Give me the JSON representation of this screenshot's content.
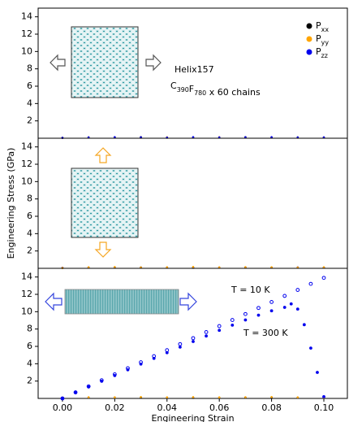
{
  "chart_data": [
    {
      "type": "scatter",
      "xlim": [
        -0.0093,
        0.109
      ],
      "ylim": [
        0,
        15
      ],
      "yticks": [
        2,
        4,
        6,
        8,
        10,
        12,
        14
      ],
      "legend": "upper right",
      "annotations": [
        "Helix157",
        "C390F780 x 60 chains"
      ],
      "series": [
        {
          "name": "Pxx",
          "color": "#000000",
          "marker": "filled",
          "x": [
            0,
            0.01,
            0.02,
            0.03,
            0.04,
            0.05,
            0.06,
            0.07,
            0.08,
            0.09,
            0.1
          ],
          "values": [
            0.05,
            0.1,
            0.08,
            0.12,
            0.06,
            0.1,
            0.09,
            0.13,
            0.07,
            0.1,
            0.08
          ]
        },
        {
          "name": "Pyy",
          "color": "#ffa500",
          "marker": "filled",
          "x": [
            0,
            0.01,
            0.02,
            0.03,
            0.04,
            0.05,
            0.06,
            0.07,
            0.08,
            0.09,
            0.1
          ],
          "values": [
            0.03,
            0.08,
            0.1,
            0.06,
            0.11,
            0.07,
            0.12,
            0.08,
            0.1,
            0.06,
            0.09
          ]
        },
        {
          "name": "Pzz",
          "color": "#0000ee",
          "marker": "filled",
          "x": [
            0,
            0.01,
            0.02,
            0.03,
            0.04,
            0.05,
            0.06,
            0.07,
            0.08,
            0.09,
            0.1
          ],
          "values": [
            0.04,
            0.09,
            0.12,
            0.1,
            0.08,
            0.13,
            0.1,
            0.11,
            0.12,
            0.09,
            0.1
          ]
        }
      ]
    },
    {
      "type": "scatter",
      "xlim": [
        -0.0093,
        0.109
      ],
      "ylim": [
        0,
        15
      ],
      "yticks": [
        2,
        4,
        6,
        8,
        10,
        12,
        14
      ],
      "ylabel": "Engineering Stress (GPa)",
      "series": [
        {
          "color": "#000000",
          "marker": "filled",
          "x": [
            0,
            0.01,
            0.02,
            0.03,
            0.04,
            0.05,
            0.06,
            0.07,
            0.08,
            0.09,
            0.1
          ],
          "values": [
            0.05,
            0.09,
            0.07,
            0.1,
            0.08,
            0.06,
            0.1,
            0.09,
            0.07,
            0.1,
            0.08
          ]
        },
        {
          "color": "#0000ee",
          "marker": "filled",
          "x": [
            0,
            0.01,
            0.02,
            0.03,
            0.04,
            0.05,
            0.06,
            0.07,
            0.08,
            0.09,
            0.1
          ],
          "values": [
            0.06,
            0.1,
            0.08,
            0.09,
            0.11,
            0.07,
            0.09,
            0.1,
            0.08,
            0.11,
            0.09
          ]
        },
        {
          "color": "#ffa500",
          "marker": "filled",
          "x": [
            0,
            0.01,
            0.02,
            0.03,
            0.04,
            0.05,
            0.06,
            0.07,
            0.08,
            0.09,
            0.1
          ],
          "values": [
            0.04,
            0.12,
            0.15,
            0.1,
            0.13,
            0.16,
            0.11,
            0.14,
            0.12,
            0.1,
            0.13
          ]
        }
      ]
    },
    {
      "type": "scatter",
      "xlim": [
        -0.0093,
        0.109
      ],
      "ylim": [
        0,
        15
      ],
      "yticks": [
        2,
        4,
        6,
        8,
        10,
        12,
        14
      ],
      "xlabel": "Engineering Strain",
      "xticks": [
        {
          "value": 0,
          "label": "0.00"
        },
        0.02,
        0.04,
        0.06,
        0.08,
        {
          "value": 0.1,
          "label": "0.10"
        }
      ],
      "series": [
        {
          "color": "#000000",
          "marker": "filled",
          "x": [
            0,
            0.01,
            0.02,
            0.03,
            0.04,
            0.05,
            0.06,
            0.07,
            0.08,
            0.09,
            0.1
          ],
          "values": [
            0.05,
            0.08,
            0.1,
            0.07,
            0.09,
            0.06,
            0.08,
            0.1,
            0.07,
            0.09,
            0.06
          ]
        },
        {
          "color": "#ffa500",
          "marker": "filled",
          "x": [
            0,
            0.01,
            0.02,
            0.03,
            0.04,
            0.05,
            0.06,
            0.07,
            0.08,
            0.09,
            0.1
          ],
          "values": [
            0.1,
            0.14,
            0.12,
            0.16,
            0.13,
            0.15,
            0.12,
            0.14,
            0.16,
            0.13,
            0.11
          ]
        },
        {
          "name": "T = 10 K",
          "color": "#0000ee",
          "marker": "open",
          "x": [
            0,
            0.005,
            0.01,
            0.015,
            0.02,
            0.025,
            0.03,
            0.035,
            0.04,
            0.045,
            0.05,
            0.055,
            0.06,
            0.065,
            0.07,
            0.075,
            0.08,
            0.085,
            0.09,
            0.095,
            0.1
          ],
          "values": [
            0,
            0.7,
            1.39,
            2.09,
            2.78,
            3.48,
            4.17,
            4.87,
            5.56,
            6.26,
            6.95,
            7.65,
            8.34,
            9.04,
            9.73,
            10.43,
            11.12,
            11.82,
            12.51,
            13.21,
            13.9
          ]
        },
        {
          "name": "T = 300 K",
          "color": "#0000ee",
          "marker": "filled",
          "x": [
            0,
            0.005,
            0.01,
            0.015,
            0.02,
            0.025,
            0.03,
            0.035,
            0.04,
            0.045,
            0.05,
            0.055,
            0.06,
            0.065,
            0.07,
            0.075,
            0.08,
            0.085,
            0.0875,
            0.09,
            0.0925,
            0.095,
            0.0975,
            0.1
          ],
          "values": [
            0,
            0.66,
            1.32,
            1.98,
            2.64,
            3.3,
            3.96,
            4.62,
            5.27,
            5.92,
            6.56,
            7.2,
            7.85,
            8.45,
            9.05,
            9.6,
            10.1,
            10.5,
            10.9,
            10.3,
            8.5,
            5.8,
            3.0,
            0.2
          ]
        }
      ]
    }
  ]
}
